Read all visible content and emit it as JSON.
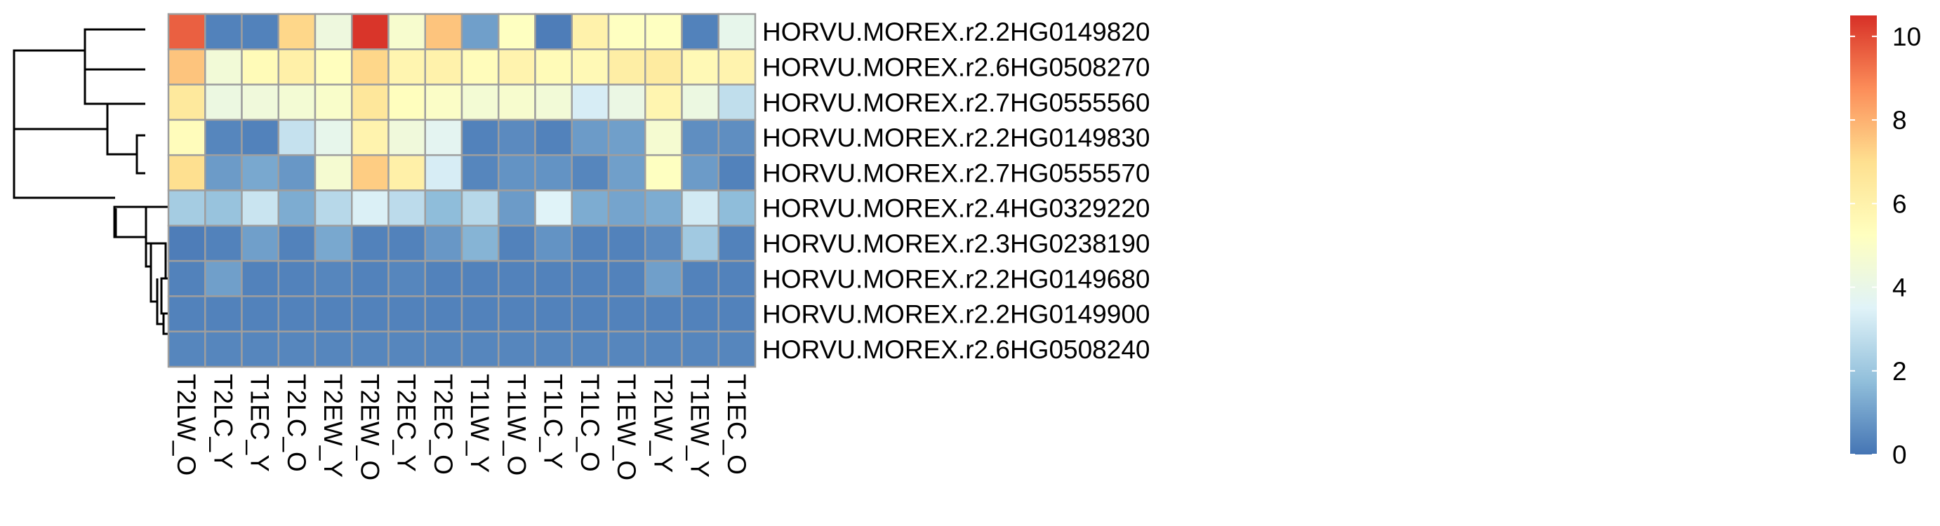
{
  "chart_data": {
    "type": "heatmap",
    "title": "",
    "xlabel": "",
    "ylabel": "",
    "columns": [
      "T2LW_O",
      "T2LC_Y",
      "T1EC_Y",
      "T2LC_O",
      "T2EW_Y",
      "T2EW_O",
      "T2EC_Y",
      "T2EC_O",
      "T1LW_Y",
      "T1LW_O",
      "T1LC_Y",
      "T1LC_O",
      "T1EW_O",
      "T2LW_Y",
      "T1EW_Y",
      "T1EC_O"
    ],
    "rows": [
      "HORVU.MOREX.r2.2HG0149820",
      "HORVU.MOREX.r2.6HG0508270",
      "HORVU.MOREX.r2.7HG0555560",
      "HORVU.MOREX.r2.2HG0149830",
      "HORVU.MOREX.r2.7HG0555570",
      "HORVU.MOREX.r2.4HG0329220",
      "HORVU.MOREX.r2.3HG0238190",
      "HORVU.MOREX.r2.2HG0149680",
      "HORVU.MOREX.r2.2HG0149900",
      "HORVU.MOREX.r2.6HG0508240"
    ],
    "values": [
      [
        9.6,
        0.3,
        0.3,
        7.2,
        4.3,
        10.4,
        4.8,
        7.6,
        1.0,
        5.2,
        0.2,
        6.0,
        5.2,
        5.2,
        0.3,
        3.9
      ],
      [
        7.6,
        4.5,
        5.5,
        6.1,
        5.3,
        7.2,
        5.8,
        6.0,
        5.4,
        5.9,
        5.5,
        5.6,
        6.2,
        6.4,
        5.6,
        5.9
      ],
      [
        6.5,
        4.2,
        4.4,
        4.6,
        4.9,
        6.6,
        5.3,
        5.0,
        4.6,
        4.8,
        4.5,
        3.3,
        4.1,
        5.8,
        4.2,
        2.8
      ],
      [
        5.4,
        0.4,
        0.3,
        2.9,
        3.9,
        5.9,
        4.4,
        3.7,
        0.3,
        0.5,
        0.3,
        0.9,
        1.0,
        4.7,
        0.6,
        0.6
      ],
      [
        7.0,
        0.9,
        1.2,
        0.8,
        4.7,
        7.4,
        6.1,
        3.3,
        0.4,
        0.7,
        0.7,
        0.4,
        1.0,
        5.2,
        0.9,
        0.3
      ],
      [
        2.2,
        1.9,
        3.0,
        1.3,
        2.6,
        3.4,
        2.7,
        1.7,
        2.6,
        0.9,
        3.5,
        1.3,
        1.1,
        1.3,
        3.2,
        1.7
      ],
      [
        0.2,
        0.3,
        1.0,
        0.3,
        1.2,
        0.3,
        0.3,
        0.8,
        1.5,
        0.3,
        0.7,
        0.3,
        0.3,
        0.5,
        2.1,
        0.3
      ],
      [
        0.3,
        1.0,
        0.3,
        0.3,
        0.4,
        0.3,
        0.4,
        0.3,
        0.3,
        0.3,
        0.3,
        0.3,
        0.3,
        1.0,
        0.3,
        0.3
      ],
      [
        0.3,
        0.3,
        0.3,
        0.3,
        0.3,
        0.3,
        0.3,
        0.3,
        0.3,
        0.3,
        0.3,
        0.3,
        0.3,
        0.3,
        0.3,
        0.3
      ],
      [
        0.4,
        0.4,
        0.4,
        0.4,
        0.4,
        0.4,
        0.4,
        0.4,
        0.4,
        0.4,
        0.4,
        0.4,
        0.4,
        0.4,
        0.4,
        0.4
      ]
    ],
    "color_range": [
      0,
      10.5
    ],
    "color_scale": [
      "#4575B4",
      "#91BFDB",
      "#E0F3F8",
      "#FFFFBF",
      "#FEE090",
      "#FC8D59",
      "#D73027"
    ],
    "legend": {
      "ticks": [
        0,
        2,
        4,
        6,
        8,
        10
      ],
      "placement": "right"
    },
    "grid_color": "#9E9E9E",
    "dendrogram": true
  }
}
